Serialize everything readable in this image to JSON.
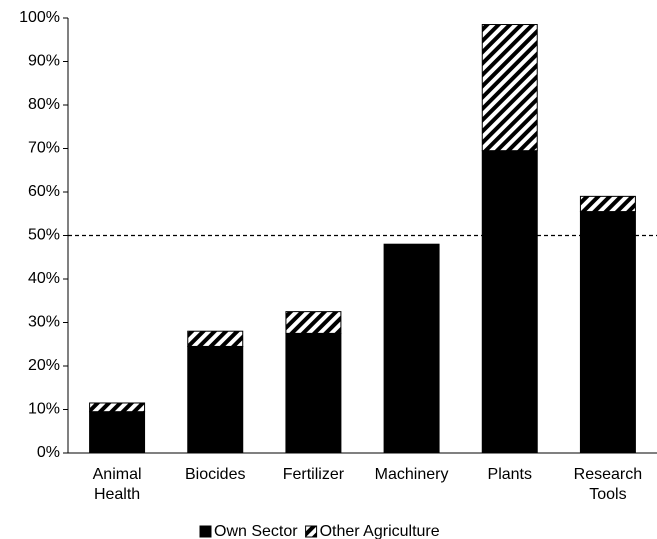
{
  "chart_data": {
    "type": "stacked-bar",
    "categories": [
      "Animal Health",
      "Biocides",
      "Fertilizer",
      "Machinery",
      "Plants",
      "Research Tools"
    ],
    "series": [
      {
        "name": "Own Sector",
        "color": "#000000",
        "values": [
          9.5,
          24.5,
          27.5,
          48,
          69.5,
          55.5
        ]
      },
      {
        "name": "Other Agriculture",
        "color": "#000000",
        "pattern": "hatch",
        "values": [
          2,
          3.5,
          5,
          0,
          29,
          3.5
        ]
      }
    ],
    "ylim": [
      0,
      100
    ],
    "yticks": [
      {
        "value": 0,
        "label": "0%"
      },
      {
        "value": 10,
        "label": "10%"
      },
      {
        "value": 20,
        "label": "20%"
      },
      {
        "value": 30,
        "label": "30%"
      },
      {
        "value": 40,
        "label": "40%"
      },
      {
        "value": 50,
        "label": "50%"
      },
      {
        "value": 60,
        "label": "60%"
      },
      {
        "value": 70,
        "label": "70%"
      },
      {
        "value": 80,
        "label": "80%"
      },
      {
        "value": 90,
        "label": "90%"
      },
      {
        "value": 100,
        "label": "100%"
      }
    ],
    "reference_line": 50,
    "grid": false,
    "legend": "bottom"
  }
}
